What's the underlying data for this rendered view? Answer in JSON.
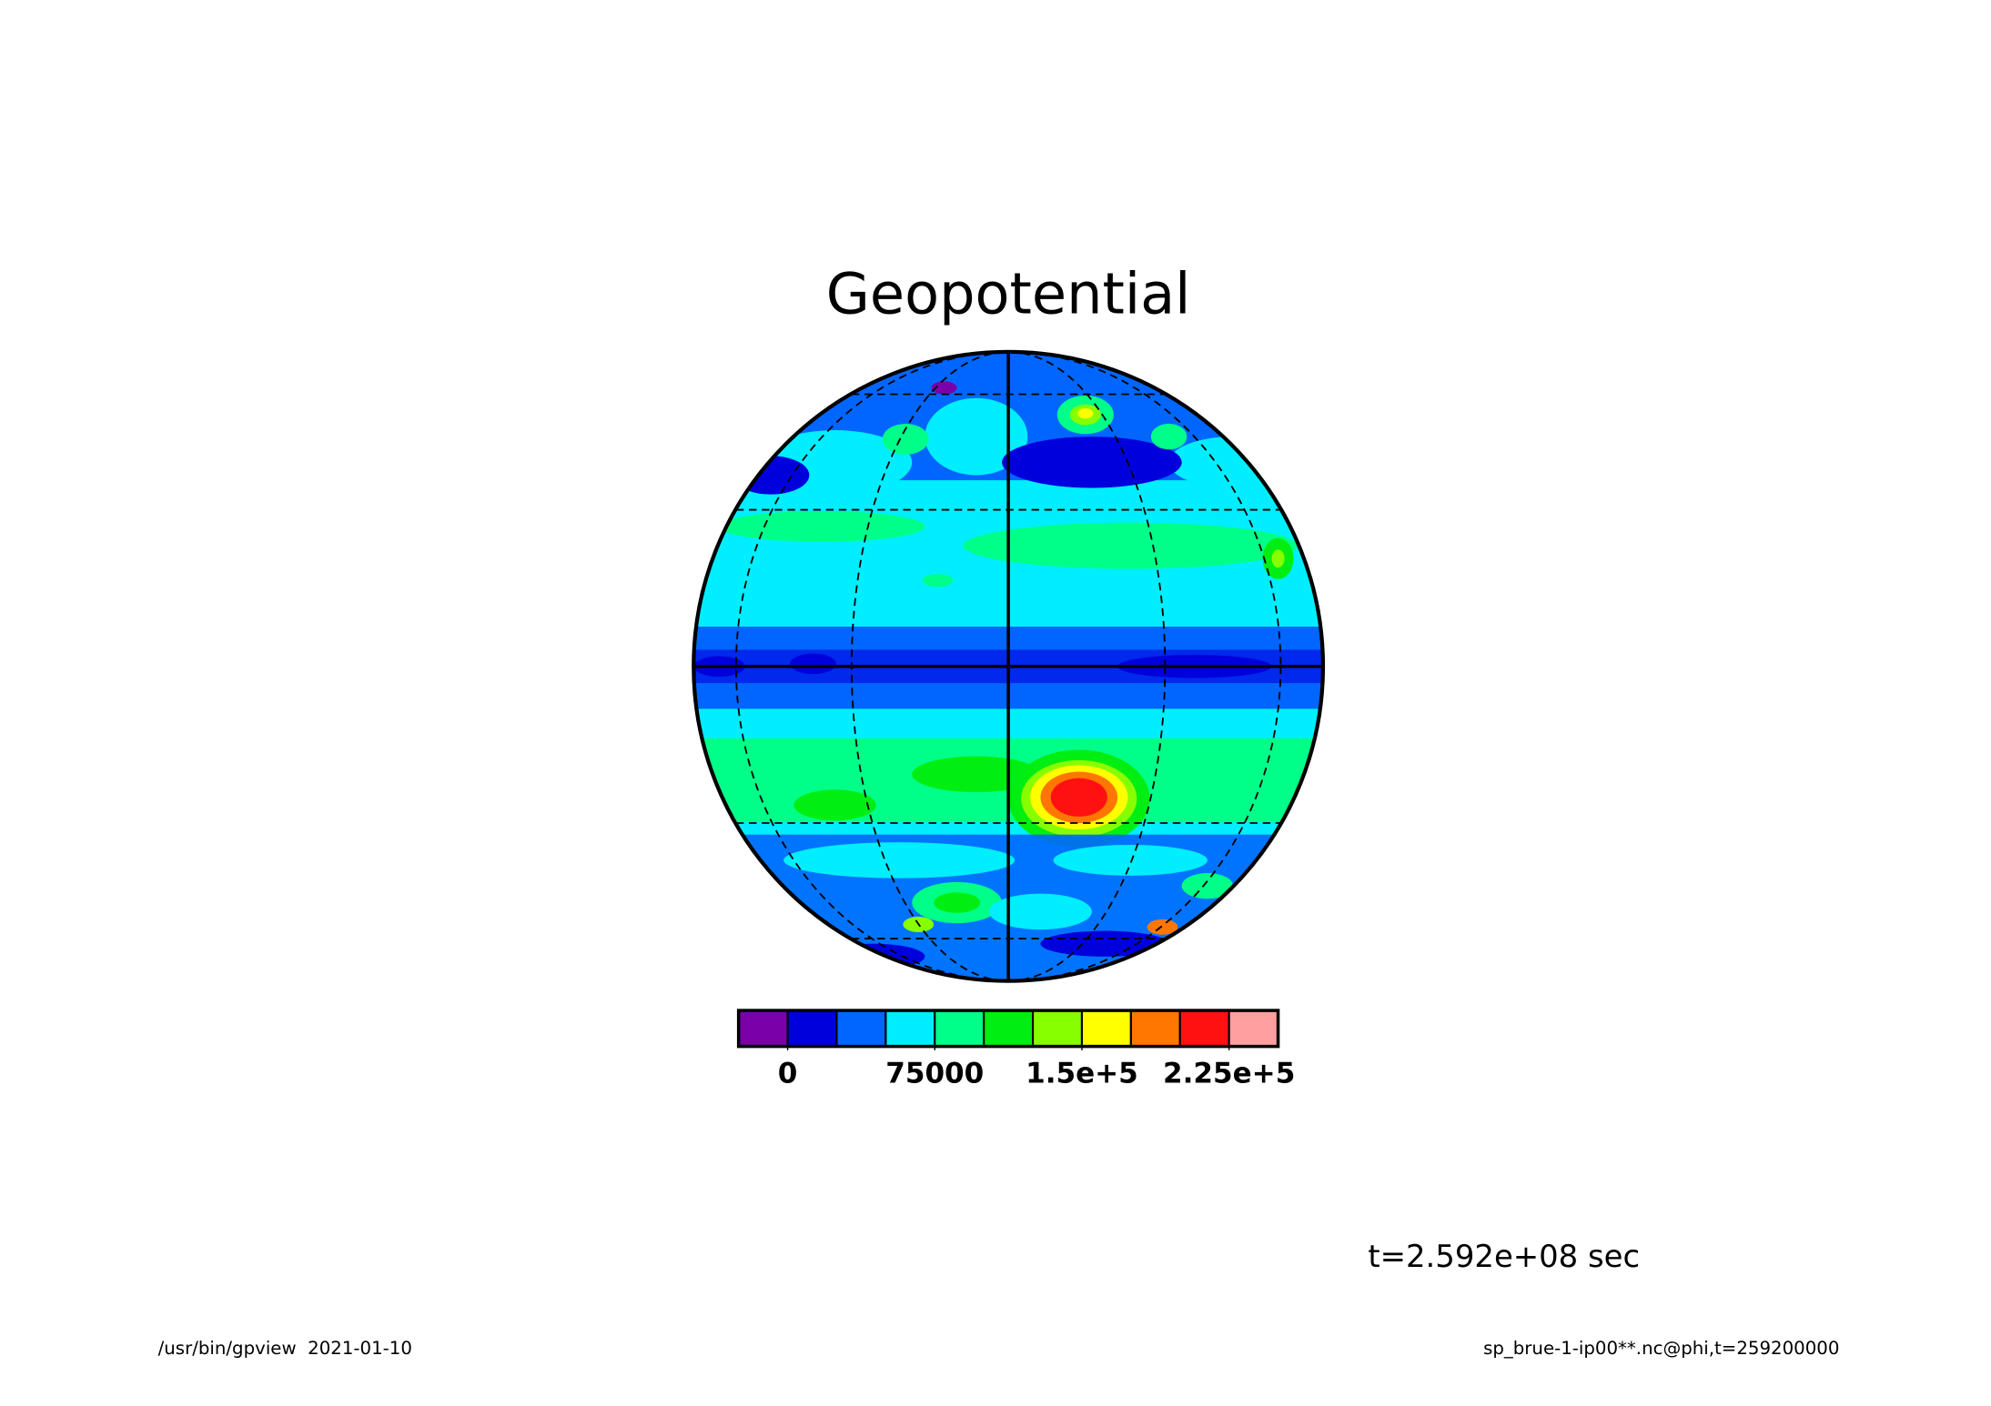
{
  "chart_data": {
    "type": "globe-contour",
    "title": "Geopotential",
    "colorbar": {
      "colors": [
        "#7a00aa",
        "#0000dd",
        "#0066ff",
        "#00eeff",
        "#00ff88",
        "#00ee11",
        "#88ff00",
        "#ffff00",
        "#ff7700",
        "#ff1111",
        "#ff9f9f"
      ],
      "lim": [
        -25000,
        250000
      ],
      "ticks": [
        0,
        75000,
        {
          "value": 150000,
          "label": "1.5e+5"
        },
        {
          "value": 225000,
          "label": "2.25e+5"
        }
      ]
    },
    "time_label": "t=2.592e+08 sec",
    "footer_left": "/usr/bin/gpview  2021-01-10",
    "footer_right": "sp_brue-1-ip00**.nc@phi,t=259200000"
  }
}
